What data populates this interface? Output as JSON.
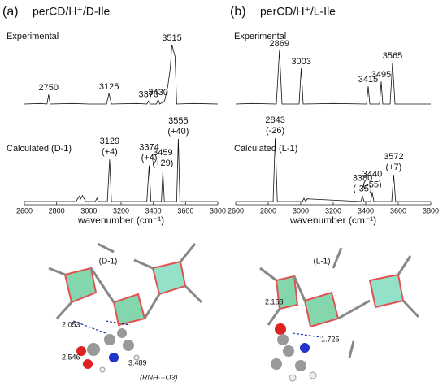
{
  "chart_data": [
    {
      "type": "line",
      "panel": "(a)",
      "title": "perCD/H⁺/D-Ile",
      "xlim": [
        2600,
        3800
      ],
      "xticks": [
        2600,
        2800,
        3000,
        3200,
        3400,
        3600,
        3800
      ],
      "xlabel": "wavenumber (cm⁻¹)",
      "series": [
        {
          "name": "Experimental",
          "color": "#111111",
          "x": [
            2600,
            2700,
            2740,
            2750,
            2760,
            2900,
            3000,
            3110,
            3125,
            3140,
            3300,
            3360,
            3370,
            3380,
            3420,
            3430,
            3440,
            3470,
            3490,
            3505,
            3515,
            3535,
            3545,
            3650,
            3800
          ],
          "values": [
            0,
            1,
            0,
            16,
            0,
            1,
            0,
            0,
            18,
            0,
            1,
            0,
            5,
            0,
            0,
            8,
            0,
            5,
            30,
            60,
            100,
            80,
            0,
            1,
            0
          ],
          "peaks": [
            {
              "x": 2750
            },
            {
              "x": 3125
            },
            {
              "x": 3370
            },
            {
              "x": 3430
            },
            {
              "x": 3515
            }
          ]
        },
        {
          "name": "Calculated  (D-1)",
          "color": "#111111",
          "x": [
            2600,
            2920,
            2940,
            2950,
            2960,
            2980,
            3040,
            3050,
            3060,
            3115,
            3129,
            3140,
            3360,
            3374,
            3385,
            3450,
            3459,
            3468,
            3545,
            3555,
            3565,
            3800
          ],
          "values": [
            0,
            0,
            8,
            4,
            9,
            0,
            0,
            5,
            0,
            0,
            63,
            0,
            0,
            54,
            0,
            0,
            46,
            0,
            0,
            94,
            0,
            0
          ],
          "peaks": [
            {
              "x": 3129,
              "shift": "(+4)"
            },
            {
              "x": 3374,
              "shift": "(+4)"
            },
            {
              "x": 3459,
              "shift": "(+29)"
            },
            {
              "x": 3555,
              "shift": "(+40)"
            }
          ]
        }
      ],
      "structure": {
        "label": "(D-1)",
        "distances": [
          2.053,
          2.546,
          3.489
        ],
        "note": "(RNH···O3)"
      }
    },
    {
      "type": "line",
      "panel": "(b)",
      "title": "perCD/H⁺/L-Ile",
      "xlim": [
        2600,
        3800
      ],
      "xticks": [
        2600,
        2800,
        3000,
        3200,
        3400,
        3600,
        3800
      ],
      "xlabel": "wavenumber (cm⁻¹)",
      "series": [
        {
          "name": "Experimental",
          "color": "#111111",
          "x": [
            2600,
            2700,
            2850,
            2869,
            2885,
            2990,
            3003,
            3015,
            3200,
            3405,
            3415,
            3425,
            3485,
            3495,
            3505,
            3550,
            3565,
            3580,
            3800
          ],
          "values": [
            0,
            1,
            0,
            90,
            0,
            0,
            60,
            0,
            1,
            0,
            30,
            0,
            0,
            38,
            0,
            0,
            70,
            0,
            0
          ],
          "peaks": [
            {
              "x": 2869
            },
            {
              "x": 3003
            },
            {
              "x": 3415
            },
            {
              "x": 3495
            },
            {
              "x": 3565
            }
          ]
        },
        {
          "name": "Calculated  (L-1)",
          "color": "#111111",
          "x": [
            2600,
            2830,
            2843,
            2856,
            3010,
            3020,
            3030,
            3040,
            3370,
            3380,
            3390,
            3430,
            3440,
            3450,
            3560,
            3572,
            3584,
            3800
          ],
          "values": [
            0,
            0,
            95,
            0,
            0,
            5,
            0,
            4,
            0,
            8,
            0,
            0,
            14,
            0,
            0,
            40,
            0,
            0
          ],
          "peaks": [
            {
              "x": 2843,
              "shift": "(-26)"
            },
            {
              "x": 3380,
              "shift": "(-35)"
            },
            {
              "x": 3440,
              "shift": "(-55)"
            },
            {
              "x": 3572,
              "shift": "(+7)"
            }
          ]
        }
      ],
      "structure": {
        "label": "(L-1)",
        "distances": [
          2.158,
          1.725
        ]
      }
    }
  ]
}
